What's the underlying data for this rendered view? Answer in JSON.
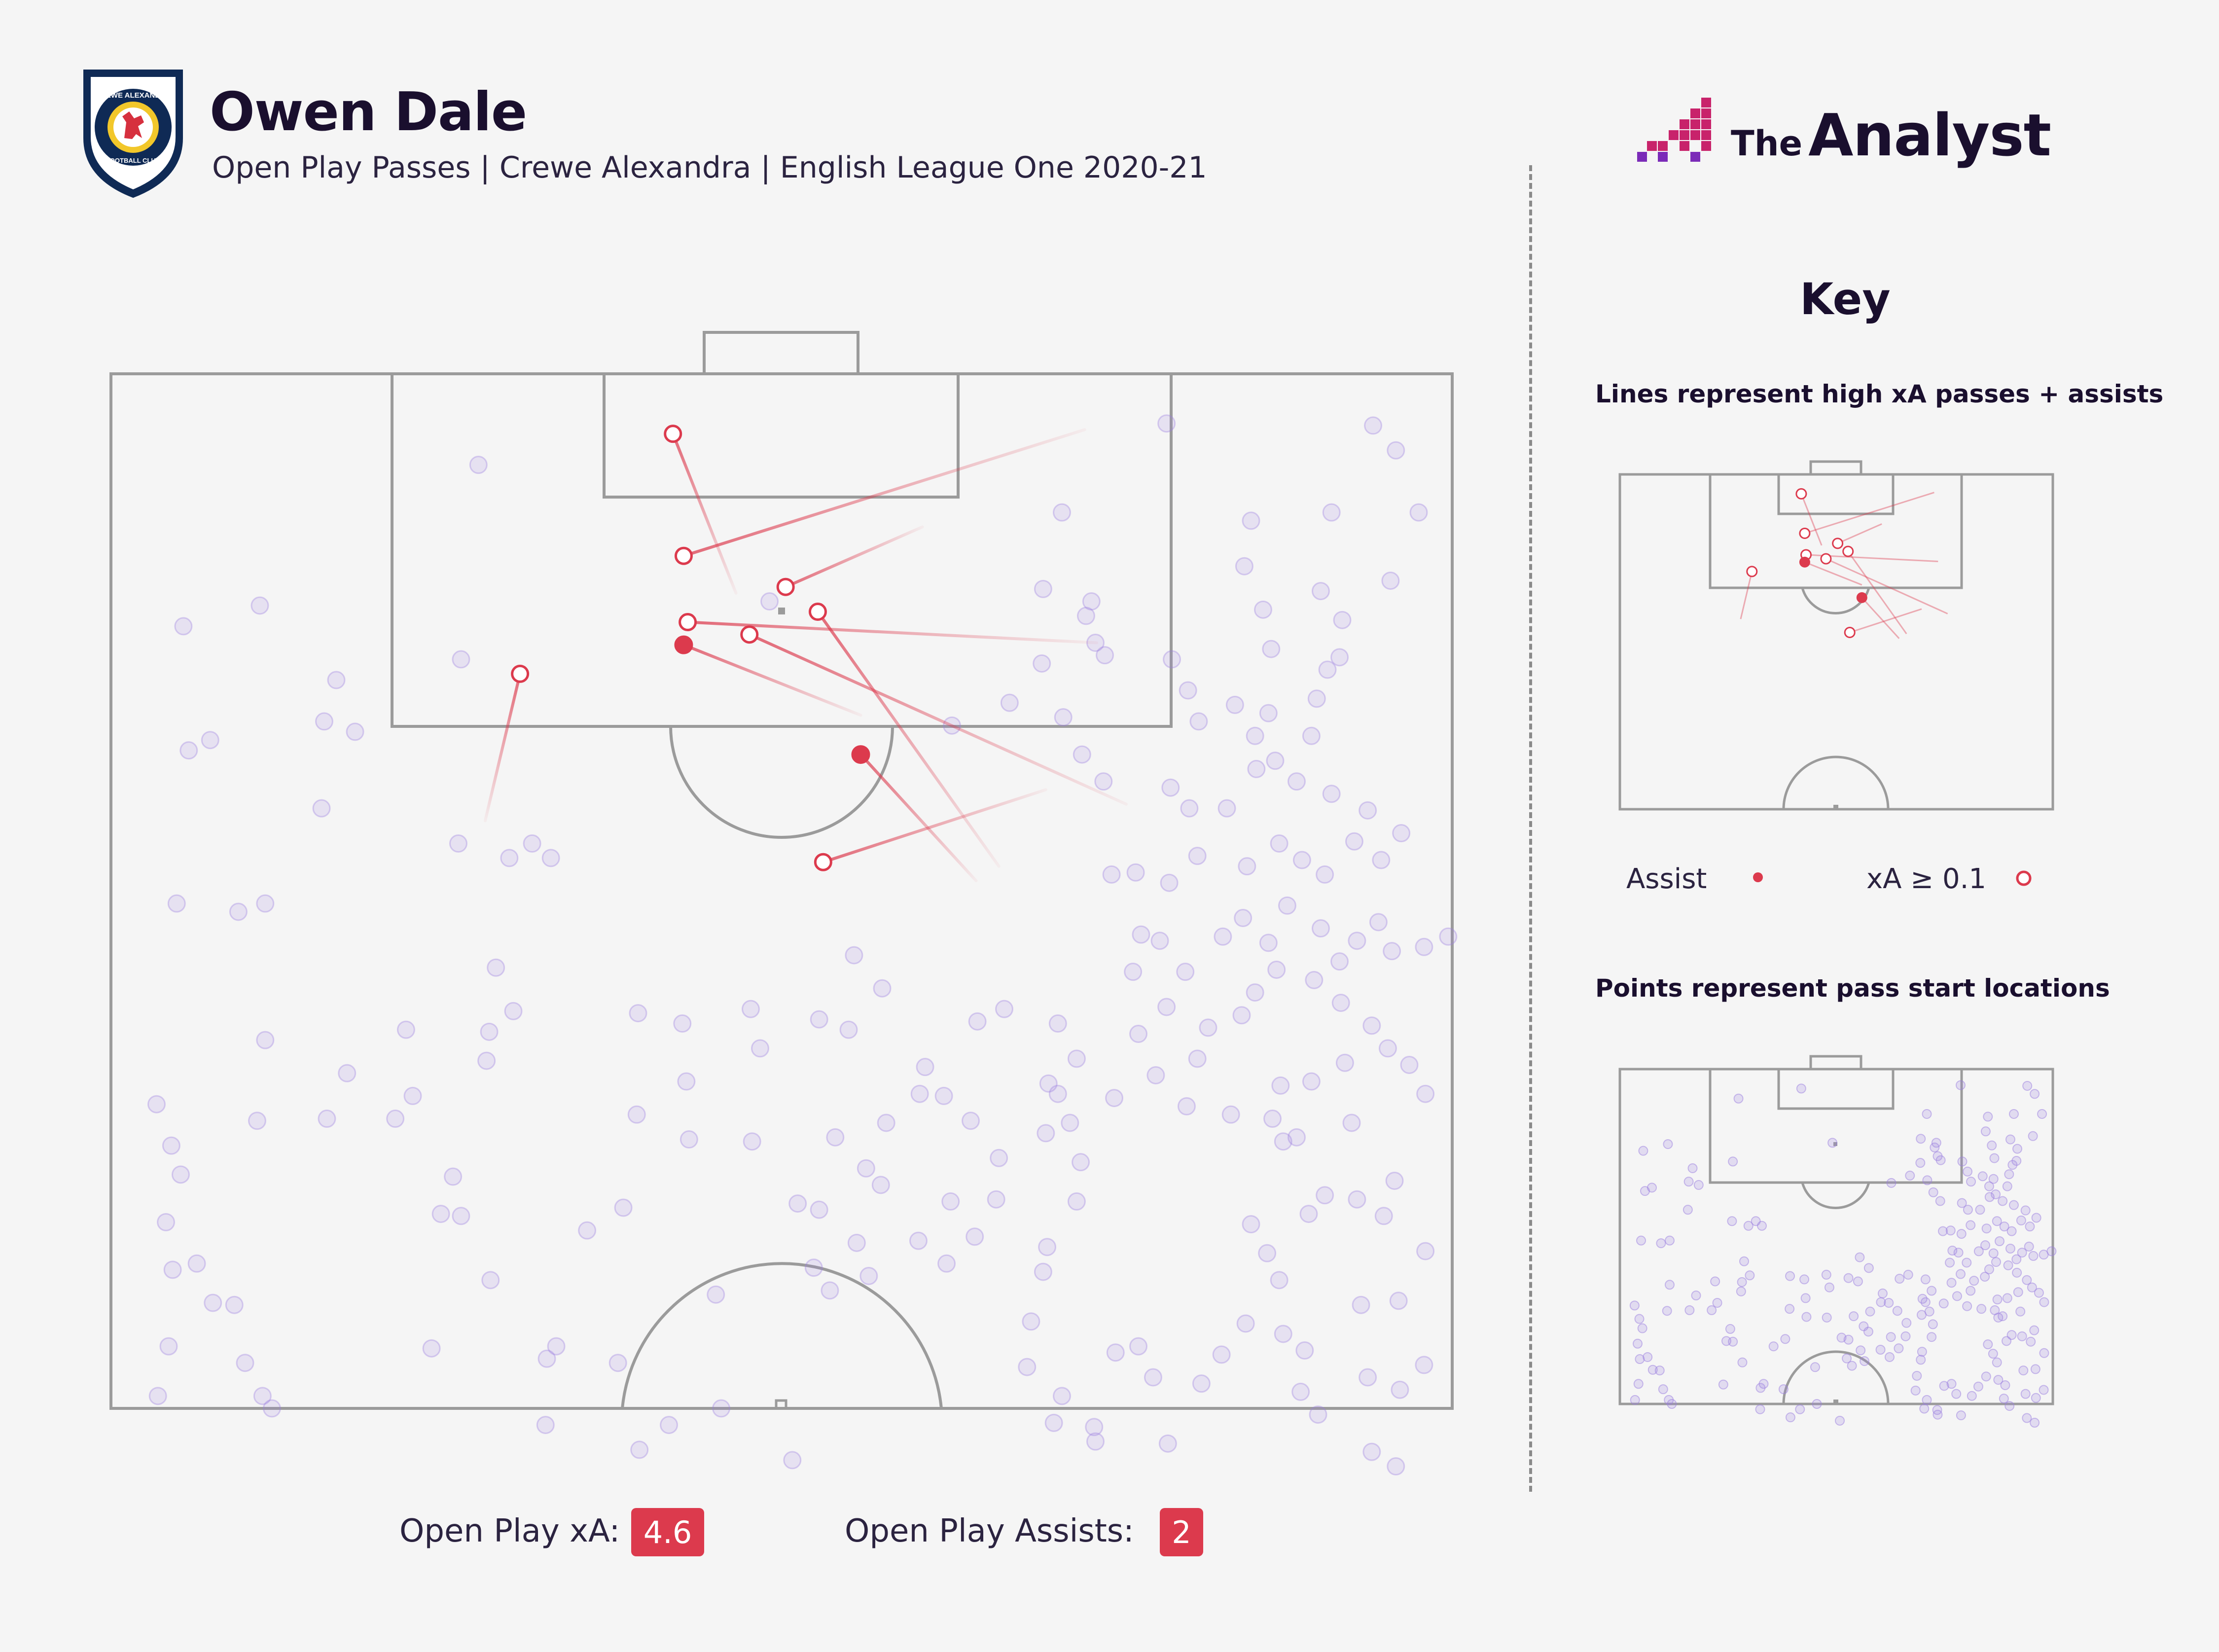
{
  "header": {
    "title": "Owen Dale",
    "subtitle": "Open Play Passes | Crewe Alexandra | English League One 2020-21",
    "crest_icon": "crewe-alexandra-crest-icon",
    "crest_text_top": "CREWE ALEXANDRA",
    "crest_text_bottom": "FOOTBALL CLUB"
  },
  "brand": {
    "prefix": "The",
    "name": "Analyst",
    "logo_icon": "the-analyst-logo-icon"
  },
  "key": {
    "title": "Key",
    "lines_text": "Lines represent high xA passes + assists",
    "points_text": "Points represent pass start locations",
    "assist_label": "Assist",
    "xa_label": "xA ≥ 0.1"
  },
  "stats": {
    "xa_label": "Open Play xA:",
    "xa_value": "4.6",
    "assists_label": "Open Play Assists:",
    "assists_value": "2"
  },
  "colors": {
    "background": "#f5f5f5",
    "pitch_lines": "#9b9b9b",
    "pass_point": "#9b7fe0",
    "assist": "#dc3a4d",
    "high_xa": "#dc3a4d",
    "stat_badge": "#dc3a4d",
    "title": "#1a0f2e"
  },
  "chart_data": {
    "type": "scatter",
    "description_units": "pitch coordinates, x = 0-100 across pitch width, y = 50-100 along pitch length (100 = opponent goal line), attacking upwards",
    "high_xa_passes": [
      {
        "start": [
          46.6,
          89.4
        ],
        "end": [
          41.9,
          97.1
        ],
        "type": "xA"
      },
      {
        "start": [
          72.6,
          97.3
        ],
        "end": [
          42.7,
          91.2
        ],
        "type": "xA"
      },
      {
        "start": [
          60.5,
          92.6
        ],
        "end": [
          50.3,
          89.7
        ],
        "type": "xA"
      },
      {
        "start": [
          73.5,
          87.0
        ],
        "end": [
          43.0,
          88.0
        ],
        "type": "xA"
      },
      {
        "start": [
          55.9,
          83.5
        ],
        "end": [
          42.7,
          86.9
        ],
        "type": "assist"
      },
      {
        "start": [
          75.7,
          79.2
        ],
        "end": [
          47.6,
          87.4
        ],
        "type": "xA"
      },
      {
        "start": [
          69.7,
          79.9
        ],
        "end": [
          53.1,
          76.4
        ],
        "type": "xA"
      },
      {
        "start": [
          64.5,
          75.5
        ],
        "end": [
          55.9,
          81.6
        ],
        "type": "assist"
      },
      {
        "start": [
          27.9,
          78.4
        ],
        "end": [
          30.5,
          85.5
        ],
        "type": "xA"
      },
      {
        "start": [
          66.2,
          76.2
        ],
        "end": [
          52.7,
          88.5
        ],
        "type": "xA"
      }
    ],
    "pass_start_locations": [
      [
        41.9,
        97.1
      ],
      [
        49.1,
        89.0
      ],
      [
        11.1,
        88.8
      ],
      [
        5.4,
        87.8
      ],
      [
        16.8,
        85.2
      ],
      [
        7.4,
        82.3
      ],
      [
        5.8,
        81.8
      ],
      [
        15.9,
        83.2
      ],
      [
        18.2,
        82.7
      ],
      [
        32.8,
        76.6
      ],
      [
        25.9,
        77.3
      ],
      [
        31.4,
        77.3
      ],
      [
        15.7,
        79.0
      ],
      [
        4.9,
        74.4
      ],
      [
        9.5,
        74.0
      ],
      [
        11.5,
        74.4
      ],
      [
        28.7,
        71.3
      ],
      [
        30.0,
        69.2
      ],
      [
        28.2,
        68.2
      ],
      [
        28.0,
        66.8
      ],
      [
        11.5,
        67.8
      ],
      [
        22.0,
        68.3
      ],
      [
        17.6,
        66.2
      ],
      [
        21.2,
        64.0
      ],
      [
        10.9,
        63.9
      ],
      [
        16.1,
        64.0
      ],
      [
        3.4,
        64.7
      ],
      [
        4.5,
        62.7
      ],
      [
        5.2,
        61.3
      ],
      [
        4.1,
        59.0
      ],
      [
        6.4,
        57.0
      ],
      [
        4.6,
        56.7
      ],
      [
        7.6,
        55.1
      ],
      [
        9.2,
        55.0
      ],
      [
        4.3,
        53.0
      ],
      [
        10.0,
        52.2
      ],
      [
        3.5,
        50.6
      ],
      [
        11.3,
        50.6
      ],
      [
        12.0,
        50.0
      ],
      [
        22.5,
        65.1
      ],
      [
        25.5,
        61.2
      ],
      [
        24.6,
        59.4
      ],
      [
        26.1,
        59.3
      ],
      [
        28.3,
        56.2
      ],
      [
        23.9,
        52.9
      ],
      [
        33.2,
        53.0
      ],
      [
        32.4,
        49.2
      ],
      [
        32.5,
        52.4
      ],
      [
        37.8,
        52.2
      ],
      [
        39.4,
        48.0
      ],
      [
        41.6,
        49.2
      ],
      [
        45.5,
        50.0
      ],
      [
        38.2,
        59.7
      ],
      [
        35.5,
        58.6
      ],
      [
        39.3,
        69.1
      ],
      [
        42.6,
        68.6
      ],
      [
        42.9,
        65.8
      ],
      [
        47.7,
        69.3
      ],
      [
        48.4,
        67.4
      ],
      [
        47.8,
        62.9
      ],
      [
        51.2,
        59.9
      ],
      [
        45.1,
        55.5
      ],
      [
        39.2,
        64.2
      ],
      [
        43.1,
        63.0
      ],
      [
        52.8,
        59.6
      ],
      [
        52.4,
        56.8
      ],
      [
        50.8,
        47.5
      ],
      [
        55.6,
        58.0
      ],
      [
        56.3,
        61.6
      ],
      [
        57.4,
        60.8
      ],
      [
        57.8,
        63.8
      ],
      [
        60.7,
        66.5
      ],
      [
        60.3,
        65.2
      ],
      [
        62.1,
        65.1
      ],
      [
        64.1,
        63.9
      ],
      [
        66.2,
        62.1
      ],
      [
        62.6,
        60.0
      ],
      [
        60.2,
        58.1
      ],
      [
        64.4,
        58.3
      ],
      [
        66.0,
        60.1
      ],
      [
        62.3,
        57.0
      ],
      [
        56.5,
        56.4
      ],
      [
        53.6,
        55.7
      ],
      [
        54.0,
        63.1
      ],
      [
        55.4,
        71.9
      ],
      [
        57.5,
        70.3
      ],
      [
        55.0,
        68.3
      ],
      [
        52.8,
        68.8
      ],
      [
        64.6,
        68.7
      ],
      [
        66.6,
        69.3
      ],
      [
        70.6,
        68.6
      ],
      [
        72.0,
        66.9
      ],
      [
        70.6,
        65.2
      ],
      [
        72.3,
        61.9
      ],
      [
        71.5,
        63.8
      ],
      [
        69.7,
        63.3
      ],
      [
        69.9,
        65.7
      ],
      [
        72.0,
        60.0
      ],
      [
        69.8,
        57.8
      ],
      [
        69.5,
        56.6
      ],
      [
        68.6,
        54.2
      ],
      [
        68.3,
        52.0
      ],
      [
        70.9,
        50.6
      ],
      [
        70.3,
        49.3
      ],
      [
        73.3,
        49.1
      ],
      [
        76.6,
        53.0
      ],
      [
        74.9,
        52.7
      ],
      [
        77.7,
        51.5
      ],
      [
        73.4,
        48.4
      ],
      [
        78.8,
        48.3
      ],
      [
        81.3,
        51.2
      ],
      [
        82.8,
        52.6
      ],
      [
        84.6,
        54.1
      ],
      [
        87.4,
        53.6
      ],
      [
        89.0,
        52.8
      ],
      [
        88.7,
        50.8
      ],
      [
        90.0,
        49.7
      ],
      [
        93.7,
        51.5
      ],
      [
        96.1,
        50.9
      ],
      [
        94.0,
        47.9
      ],
      [
        95.8,
        47.2
      ],
      [
        97.9,
        52.1
      ],
      [
        93.2,
        55.0
      ],
      [
        96.0,
        55.2
      ],
      [
        98.0,
        57.6
      ],
      [
        85.0,
        58.9
      ],
      [
        86.2,
        57.5
      ],
      [
        87.1,
        56.2
      ],
      [
        89.3,
        59.4
      ],
      [
        90.5,
        60.3
      ],
      [
        92.9,
        60.1
      ],
      [
        94.9,
        59.3
      ],
      [
        95.7,
        61.0
      ],
      [
        87.4,
        62.9
      ],
      [
        86.6,
        64.0
      ],
      [
        88.4,
        63.1
      ],
      [
        87.2,
        65.6
      ],
      [
        83.5,
        64.2
      ],
      [
        81.0,
        66.9
      ],
      [
        80.2,
        64.6
      ],
      [
        77.9,
        66.1
      ],
      [
        74.8,
        65.0
      ],
      [
        76.6,
        68.1
      ],
      [
        78.7,
        69.4
      ],
      [
        81.8,
        68.4
      ],
      [
        84.3,
        69.0
      ],
      [
        85.3,
        70.1
      ],
      [
        86.9,
        71.2
      ],
      [
        89.7,
        70.7
      ],
      [
        91.7,
        69.6
      ],
      [
        94.0,
        68.5
      ],
      [
        95.2,
        67.4
      ],
      [
        96.8,
        66.6
      ],
      [
        98.0,
        65.2
      ],
      [
        92.0,
        66.7
      ],
      [
        92.5,
        63.8
      ],
      [
        89.5,
        65.8
      ],
      [
        76.2,
        71.1
      ],
      [
        76.8,
        72.9
      ],
      [
        78.2,
        72.6
      ],
      [
        80.1,
        71.1
      ],
      [
        82.9,
        72.8
      ],
      [
        84.4,
        73.7
      ],
      [
        86.3,
        72.5
      ],
      [
        87.7,
        74.3
      ],
      [
        90.2,
        73.2
      ],
      [
        91.6,
        71.6
      ],
      [
        92.9,
        72.6
      ],
      [
        94.5,
        73.5
      ],
      [
        95.5,
        72.1
      ],
      [
        97.9,
        72.3
      ],
      [
        99.7,
        72.8
      ],
      [
        74.6,
        75.8
      ],
      [
        76.4,
        75.9
      ],
      [
        78.9,
        75.4
      ],
      [
        81.0,
        76.7
      ],
      [
        84.7,
        76.2
      ],
      [
        87.1,
        77.3
      ],
      [
        88.8,
        76.5
      ],
      [
        90.5,
        75.8
      ],
      [
        92.7,
        77.4
      ],
      [
        94.7,
        76.5
      ],
      [
        96.2,
        77.8
      ],
      [
        93.7,
        78.9
      ],
      [
        91.0,
        79.7
      ],
      [
        88.4,
        80.3
      ],
      [
        85.4,
        80.9
      ],
      [
        83.2,
        79.0
      ],
      [
        80.4,
        79.0
      ],
      [
        79.0,
        80.0
      ],
      [
        74.0,
        80.3
      ],
      [
        72.4,
        81.6
      ],
      [
        71.0,
        83.4
      ],
      [
        67.0,
        84.1
      ],
      [
        69.4,
        86.0
      ],
      [
        62.7,
        83.0
      ],
      [
        69.5,
        89.6
      ],
      [
        72.7,
        88.3
      ],
      [
        73.4,
        87.0
      ],
      [
        74.1,
        86.4
      ],
      [
        79.1,
        86.2
      ],
      [
        80.3,
        84.7
      ],
      [
        81.1,
        83.2
      ],
      [
        83.8,
        84.0
      ],
      [
        86.3,
        83.6
      ],
      [
        85.3,
        82.5
      ],
      [
        86.8,
        81.3
      ],
      [
        89.5,
        82.5
      ],
      [
        89.9,
        84.3
      ],
      [
        90.7,
        85.7
      ],
      [
        86.5,
        86.7
      ],
      [
        85.9,
        88.6
      ],
      [
        84.5,
        90.7
      ],
      [
        85.0,
        92.9
      ],
      [
        90.2,
        89.5
      ],
      [
        91.8,
        88.1
      ],
      [
        91.6,
        86.3
      ],
      [
        95.4,
        90.0
      ],
      [
        97.5,
        93.3
      ],
      [
        95.8,
        96.3
      ],
      [
        94.1,
        97.5
      ],
      [
        91.0,
        93.3
      ],
      [
        78.7,
        97.6
      ],
      [
        70.9,
        93.3
      ],
      [
        73.1,
        89.0
      ],
      [
        27.4,
        95.6
      ],
      [
        26.1,
        86.2
      ],
      [
        29.7,
        76.6
      ]
    ]
  }
}
